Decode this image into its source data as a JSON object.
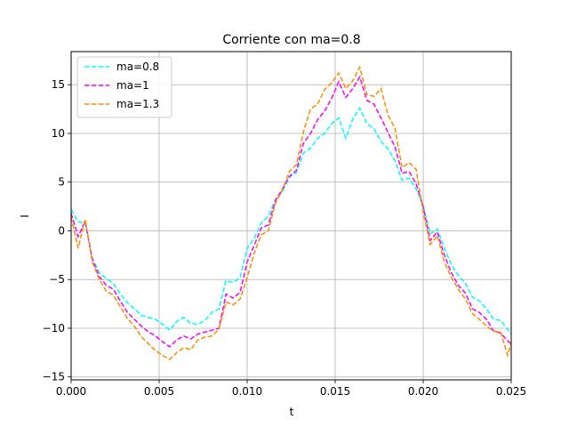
{
  "chart_data": {
    "type": "line",
    "title": "Corriente con ma=0.8",
    "xlabel": "t",
    "ylabel": "I",
    "xlim": [
      0,
      0.025
    ],
    "ylim": [
      -15.3,
      18.4
    ],
    "xticks": [
      0,
      0.005,
      0.01,
      0.015,
      0.02,
      0.025
    ],
    "xtick_labels": [
      "0.000",
      "0.005",
      "0.010",
      "0.015",
      "0.020",
      "0.025"
    ],
    "yticks": [
      -15,
      -10,
      -5,
      0,
      5,
      10,
      15
    ],
    "ytick_labels": [
      "−15",
      "−10",
      "−5",
      "0",
      "5",
      "10",
      "15"
    ],
    "grid": true,
    "legend_position": "top-left",
    "series": [
      {
        "name": "ma=0.8",
        "color": "#00ffff",
        "style": "dashed",
        "ma": 0.8,
        "x": [
          0,
          0.0004,
          0.0008,
          0.0012,
          0.0016,
          0.002,
          0.0024,
          0.0028,
          0.0032,
          0.0036,
          0.004,
          0.0044,
          0.0048,
          0.0052,
          0.0056,
          0.006,
          0.0064,
          0.0068,
          0.0072,
          0.0076,
          0.008,
          0.0084,
          0.0088,
          0.0092,
          0.0096,
          0.01,
          0.0104,
          0.0108,
          0.0112,
          0.0116,
          0.012,
          0.0124,
          0.0128,
          0.0132,
          0.0136,
          0.014,
          0.0144,
          0.0148,
          0.0152,
          0.0156,
          0.016,
          0.0164,
          0.0168,
          0.0172,
          0.0176,
          0.018,
          0.0184,
          0.0188,
          0.0192,
          0.0196,
          0.02,
          0.0204,
          0.0208,
          0.0212,
          0.0216,
          0.022,
          0.0224,
          0.0228,
          0.0232,
          0.0236,
          0.024,
          0.0244,
          0.0248,
          0.025
        ],
        "y": [
          2.2,
          0.9,
          0.8,
          -2.8,
          -4.3,
          -4.9,
          -5.4,
          -6.5,
          -7.4,
          -8.0,
          -8.7,
          -8.9,
          -9.1,
          -9.6,
          -10.2,
          -9.3,
          -8.9,
          -9.5,
          -9.6,
          -9.2,
          -8.4,
          -8.0,
          -5.1,
          -5.3,
          -4.8,
          -1.8,
          -0.8,
          0.8,
          1.5,
          3.2,
          4.0,
          5.5,
          6.0,
          8.0,
          8.5,
          9.5,
          10.0,
          11.0,
          11.6,
          9.5,
          11.5,
          12.6,
          11.0,
          10.5,
          9.2,
          8.4,
          7.2,
          5.2,
          5.4,
          4.3,
          2.6,
          -0.3,
          0.2,
          -1.8,
          -3.5,
          -4.6,
          -5.4,
          -6.8,
          -7.2,
          -8.0,
          -9.1,
          -9.2,
          -10.1,
          -10.6
        ]
      },
      {
        "name": "ma=1",
        "color": "#ff00ff",
        "style": "dashed",
        "ma": 1.0,
        "x": [
          0,
          0.0004,
          0.0008,
          0.0012,
          0.0016,
          0.002,
          0.0024,
          0.0028,
          0.0032,
          0.0036,
          0.004,
          0.0044,
          0.0048,
          0.0052,
          0.0056,
          0.006,
          0.0064,
          0.0068,
          0.0072,
          0.0076,
          0.008,
          0.0084,
          0.0088,
          0.0092,
          0.0096,
          0.01,
          0.0104,
          0.0108,
          0.0112,
          0.0116,
          0.012,
          0.0124,
          0.0128,
          0.0132,
          0.0136,
          0.014,
          0.0144,
          0.0148,
          0.0152,
          0.0156,
          0.016,
          0.0164,
          0.0168,
          0.0172,
          0.0176,
          0.018,
          0.0184,
          0.0188,
          0.0192,
          0.0196,
          0.02,
          0.0204,
          0.0208,
          0.0212,
          0.0216,
          0.022,
          0.0224,
          0.0228,
          0.0232,
          0.0236,
          0.024,
          0.0244,
          0.0248,
          0.025
        ],
        "y": [
          1.8,
          -0.6,
          1.0,
          -2.9,
          -4.7,
          -5.6,
          -6.0,
          -7.2,
          -8.4,
          -9.1,
          -9.8,
          -10.4,
          -10.8,
          -11.4,
          -11.9,
          -11.2,
          -10.8,
          -11.1,
          -10.6,
          -10.4,
          -10.2,
          -10.0,
          -6.5,
          -6.9,
          -6.3,
          -3.2,
          -1.5,
          0.3,
          0.6,
          3.1,
          4.3,
          5.6,
          6.2,
          9.0,
          10.0,
          11.4,
          12.3,
          13.6,
          15.3,
          13.7,
          14.6,
          15.8,
          13.4,
          13.0,
          11.6,
          10.1,
          8.6,
          5.9,
          6.1,
          4.8,
          2.5,
          -1.0,
          -0.1,
          -2.5,
          -4.3,
          -5.6,
          -6.4,
          -8.0,
          -8.4,
          -9.1,
          -10.3,
          -10.5,
          -11.3,
          -11.6
        ]
      },
      {
        "name": "ma=1.3",
        "color": "#ff8c00",
        "style": "dashed",
        "ma": 1.3,
        "x": [
          0,
          0.0004,
          0.0008,
          0.0012,
          0.0016,
          0.002,
          0.0024,
          0.0028,
          0.0032,
          0.0036,
          0.004,
          0.0044,
          0.0048,
          0.0052,
          0.0056,
          0.006,
          0.0064,
          0.0068,
          0.0072,
          0.0076,
          0.008,
          0.0084,
          0.0088,
          0.0092,
          0.0096,
          0.01,
          0.0104,
          0.0108,
          0.0112,
          0.0116,
          0.012,
          0.0124,
          0.0128,
          0.0132,
          0.0136,
          0.014,
          0.0144,
          0.0148,
          0.0152,
          0.0156,
          0.016,
          0.0164,
          0.0168,
          0.0172,
          0.0176,
          0.018,
          0.0184,
          0.0188,
          0.0192,
          0.0196,
          0.02,
          0.0204,
          0.0208,
          0.0212,
          0.0216,
          0.022,
          0.0224,
          0.0228,
          0.0232,
          0.0236,
          0.024,
          0.0244,
          0.0248,
          0.025
        ],
        "y": [
          1.4,
          -1.8,
          1.2,
          -3.2,
          -5.0,
          -6.2,
          -6.6,
          -7.8,
          -9.0,
          -9.8,
          -10.9,
          -11.6,
          -12.3,
          -12.8,
          -13.2,
          -12.5,
          -12.0,
          -12.2,
          -11.2,
          -10.9,
          -10.8,
          -10.1,
          -7.3,
          -7.6,
          -7.0,
          -4.8,
          -2.3,
          -0.4,
          0.0,
          2.8,
          4.2,
          6.1,
          6.8,
          10.2,
          12.5,
          13.0,
          14.5,
          15.2,
          16.2,
          14.6,
          15.4,
          16.8,
          14.0,
          13.8,
          14.6,
          11.9,
          10.5,
          6.5,
          7.0,
          6.3,
          1.9,
          -1.4,
          -0.5,
          -3.2,
          -4.8,
          -6.0,
          -7.0,
          -8.5,
          -9.1,
          -9.8,
          -10.3,
          -10.4,
          -12.8,
          -11.4
        ]
      }
    ]
  }
}
